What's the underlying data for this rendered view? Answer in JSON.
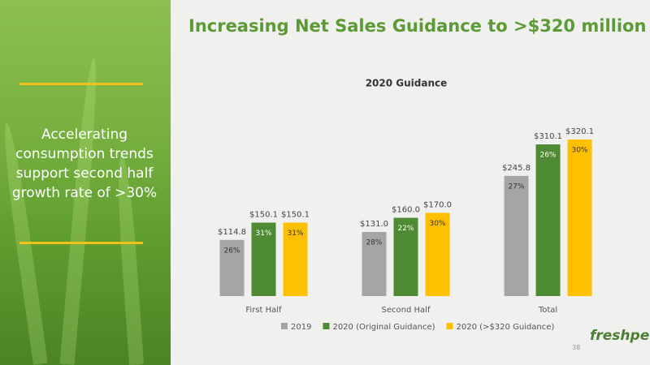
{
  "header": {
    "title": "Increasing Net Sales Guidance to >$320 million"
  },
  "sidebar": {
    "text": "Accelerating consumption trends support second half growth rate of >30%"
  },
  "chart_data": {
    "type": "bar",
    "title": "2020 Guidance",
    "categories": [
      "First Half",
      "Second Half",
      "Total"
    ],
    "series": [
      {
        "name": "2019",
        "color": "#a5a5a5",
        "values": [
          114.8,
          131.0,
          245.8
        ],
        "value_labels": [
          "$114.8",
          "$131.0",
          "$245.8"
        ],
        "growth_labels": [
          "26%",
          "28%",
          "27%"
        ]
      },
      {
        "name": "2020 (Original Guidance)",
        "color": "#4f8a34",
        "values": [
          150.1,
          160.0,
          310.1
        ],
        "value_labels": [
          "$150.1",
          "$160.0",
          "$310.1"
        ],
        "growth_labels": [
          "31%",
          "22%",
          "26%"
        ]
      },
      {
        "name": "2020 (>$320 Guidance)",
        "color": "#ffc000",
        "values": [
          150.1,
          170.0,
          320.1
        ],
        "value_labels": [
          "$150.1",
          "$170.0",
          "$320.1"
        ],
        "growth_labels": [
          "31%",
          "30%",
          "30%"
        ]
      }
    ]
  },
  "footer": {
    "page": "38",
    "logo": "freshpet"
  }
}
